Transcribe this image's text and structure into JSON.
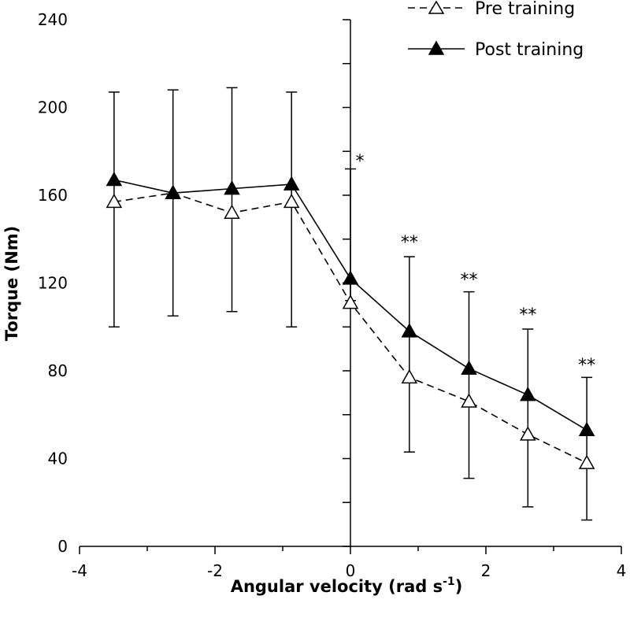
{
  "chart_data": {
    "type": "line",
    "xlabel": "Angular velocity (rad s",
    "xlabel_sup": "-1",
    "xlabel_close": ")",
    "ylabel": "Torque (Nm)",
    "xlim": [
      -4,
      4
    ],
    "ylim": [
      0,
      240
    ],
    "x_ticks": [
      -4,
      -2,
      0,
      2,
      4
    ],
    "x_minor_ticks": [
      -3,
      -1,
      1,
      3
    ],
    "y_ticks": [
      0,
      40,
      80,
      120,
      160,
      200,
      240
    ],
    "y_minor_ticks": [
      20,
      60,
      100,
      140,
      180,
      220
    ],
    "grid": false,
    "legend_position": "top-right",
    "x": [
      -3.49,
      -2.62,
      -1.75,
      -0.87,
      0,
      0.87,
      1.75,
      2.62,
      3.49
    ],
    "series": [
      {
        "name": "Pre training",
        "marker": "open-triangle",
        "line": "dashed",
        "values": [
          157,
          161,
          152,
          157,
          111,
          77,
          66,
          51,
          38
        ]
      },
      {
        "name": "Post training",
        "marker": "filled-triangle",
        "line": "solid",
        "values": [
          167,
          161,
          163,
          165,
          122,
          98,
          81,
          69,
          53
        ]
      }
    ],
    "error_bars": [
      {
        "x": -3.49,
        "low": 100,
        "high": 207
      },
      {
        "x": -2.62,
        "low": 105,
        "high": 208
      },
      {
        "x": -1.75,
        "low": 107,
        "high": 209
      },
      {
        "x": -0.87,
        "low": 100,
        "high": 207
      },
      {
        "x": 0,
        "low": 112,
        "high": 172
      },
      {
        "x": 0.87,
        "low": 43,
        "high": 132
      },
      {
        "x": 1.75,
        "low": 31,
        "high": 116
      },
      {
        "x": 2.62,
        "low": 18,
        "high": 99
      },
      {
        "x": 3.49,
        "low": 12,
        "high": 77
      }
    ],
    "annotations": [
      {
        "x": 0,
        "y": 178,
        "text": "*"
      },
      {
        "x": 0.87,
        "y": 141,
        "text": "**"
      },
      {
        "x": 1.75,
        "y": 124,
        "text": "**"
      },
      {
        "x": 2.62,
        "y": 108,
        "text": "**"
      },
      {
        "x": 3.49,
        "y": 85,
        "text": "**"
      }
    ]
  }
}
